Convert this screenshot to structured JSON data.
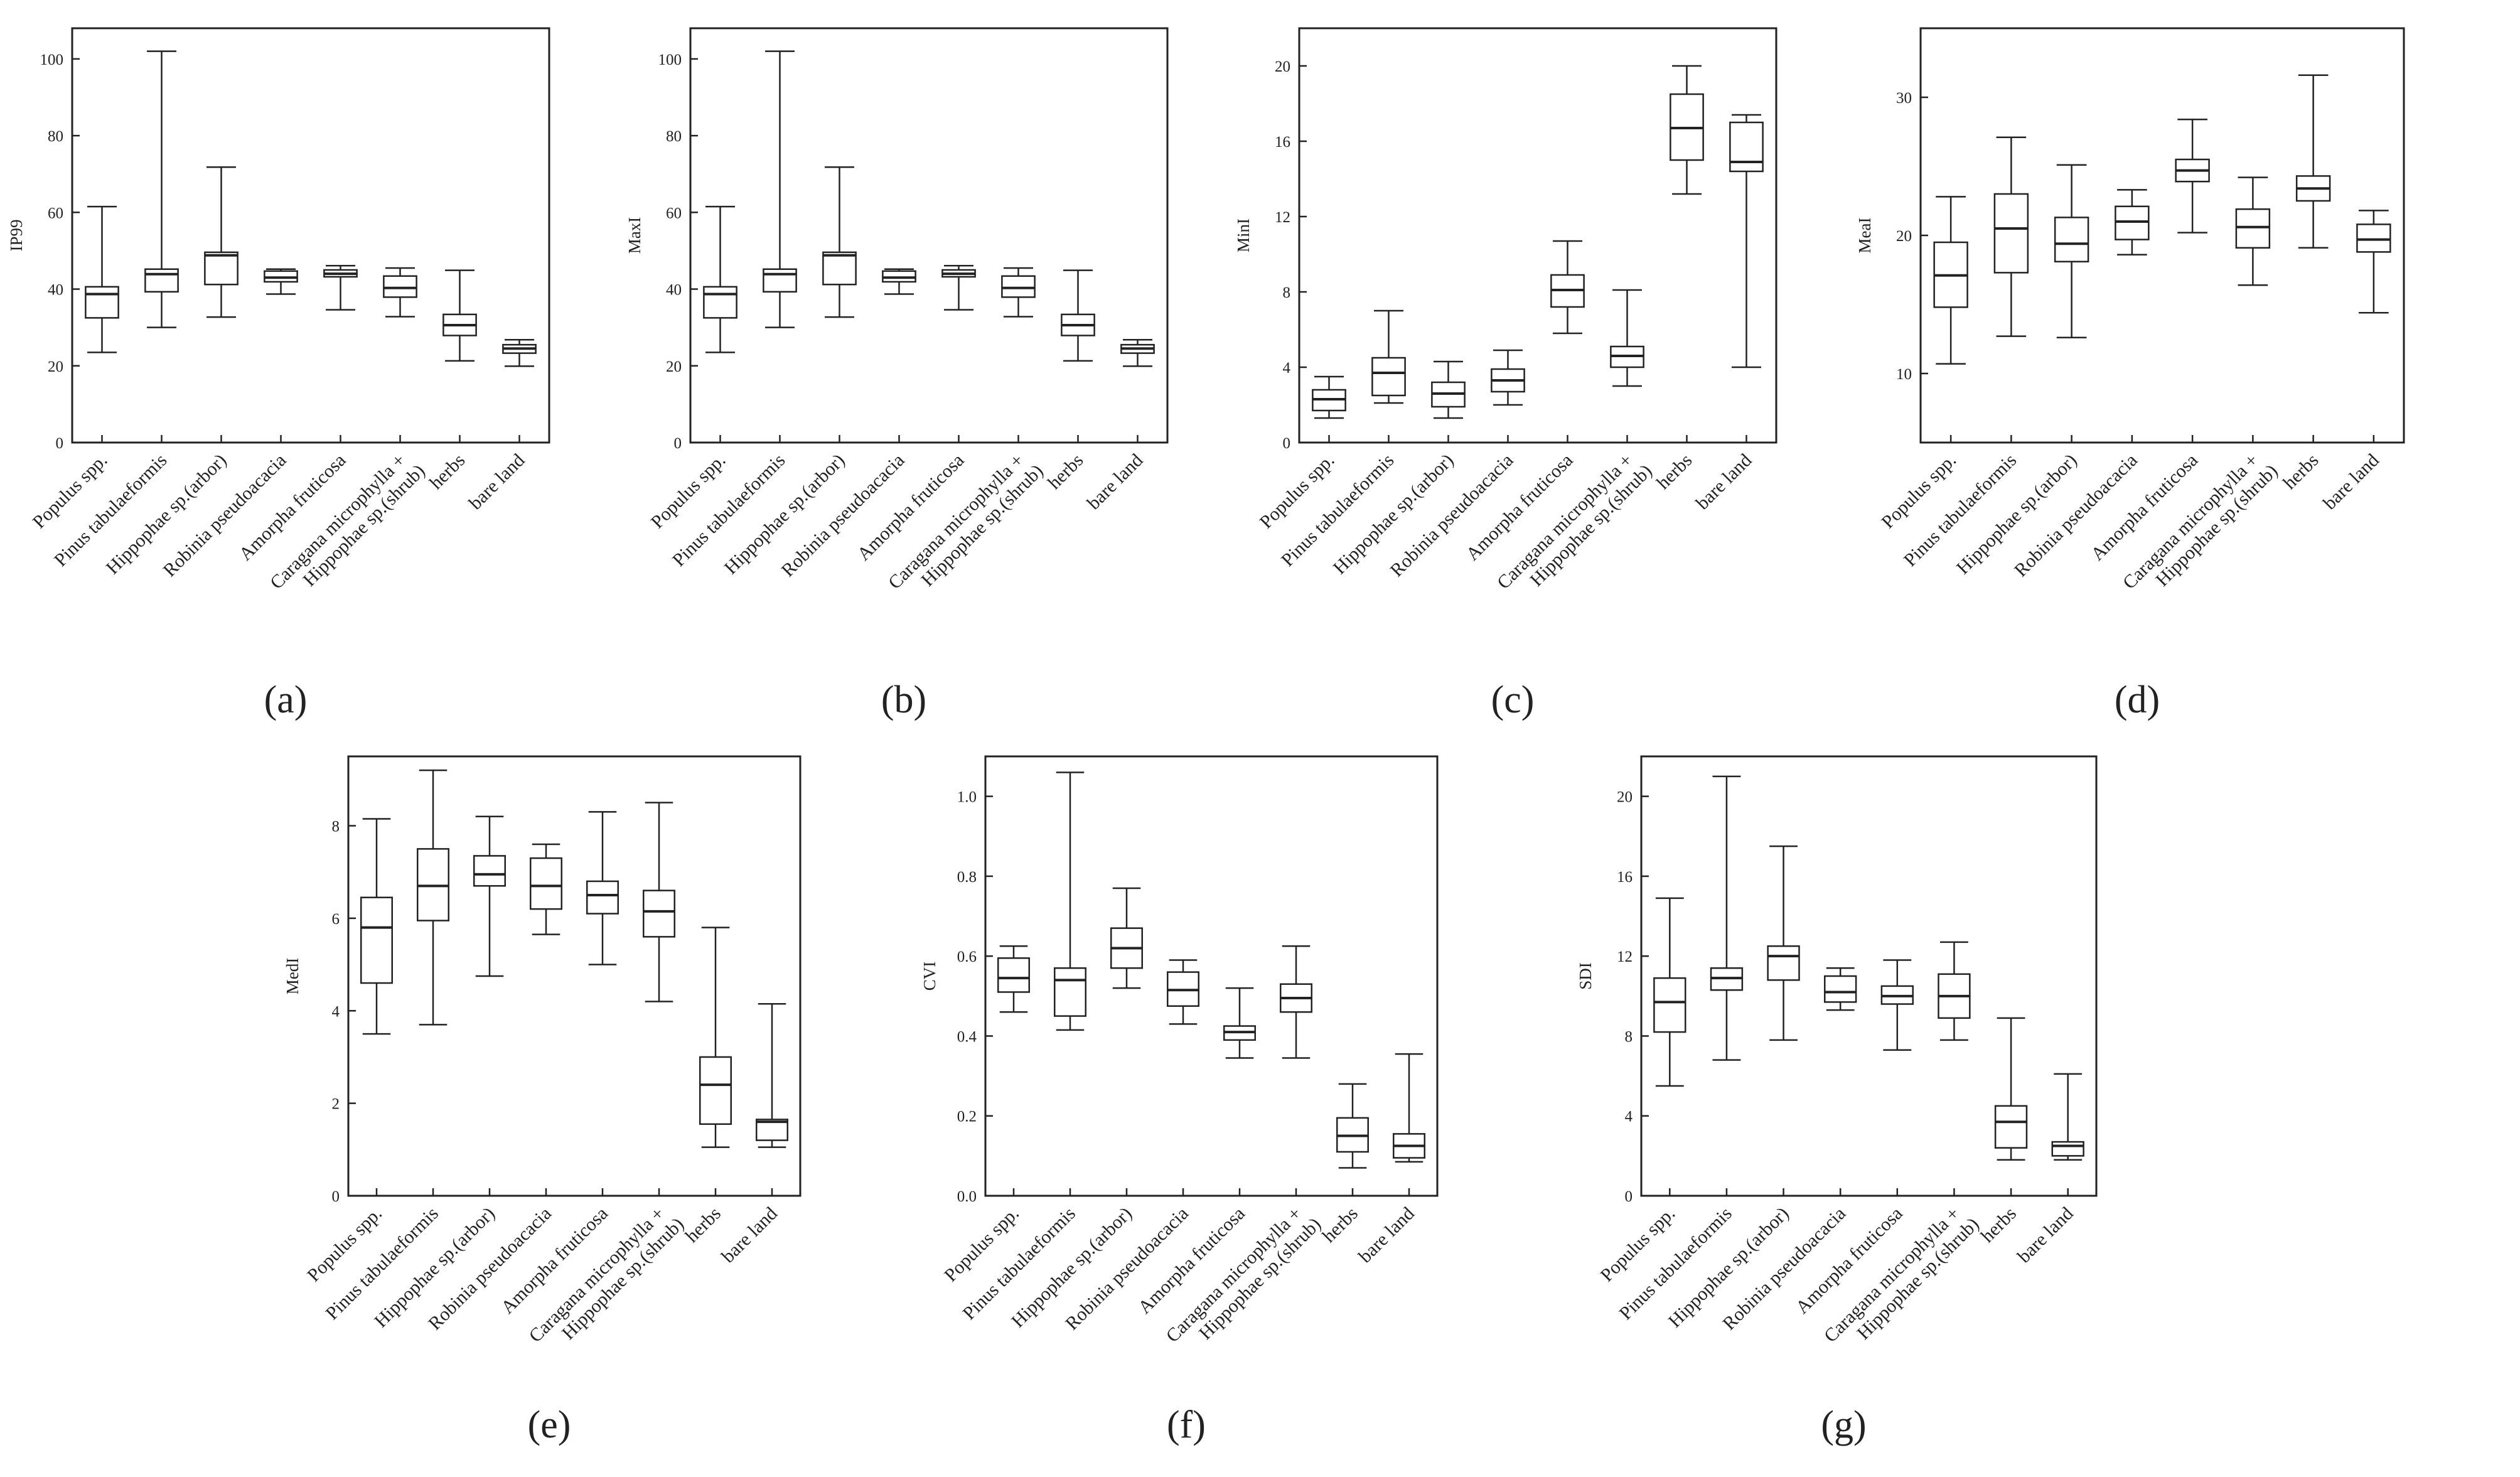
{
  "figure": {
    "category_lines": [
      [
        "Populus spp."
      ],
      [
        "Pinus tabulaeformis"
      ],
      [
        "Hippophae sp.(arbor)"
      ],
      [
        "Robinia pseudoacacia"
      ],
      [
        "Amorpha fruticosa"
      ],
      [
        "Caragana microphylla +",
        "Hippophae sp.(shrub)"
      ],
      [
        "herbs"
      ],
      [
        "bare land"
      ]
    ]
  },
  "chart_data": [
    {
      "type": "boxplot",
      "panel": "(a)",
      "ylabel": "IP99",
      "ylim": [
        0,
        108
      ],
      "yticks": [
        0,
        20,
        40,
        60,
        80,
        100
      ],
      "grid": false,
      "categories": [
        "Populus spp.",
        "Pinus tabulaeformis",
        "Hippophae sp.(arbor)",
        "Robinia pseudoacacia",
        "Amorpha fruticosa",
        "Caragana microphylla + Hippophae sp.(shrub)",
        "herbs",
        "bare land"
      ],
      "boxes": [
        {
          "min": 23.5,
          "q1": 32.5,
          "median": 38.7,
          "q3": 40.6,
          "max": 61.5
        },
        {
          "min": 30.0,
          "q1": 39.3,
          "median": 43.9,
          "q3": 45.2,
          "max": 102.0
        },
        {
          "min": 32.7,
          "q1": 41.2,
          "median": 48.8,
          "q3": 49.6,
          "max": 71.8
        },
        {
          "min": 38.7,
          "q1": 41.9,
          "median": 43.0,
          "q3": 44.7,
          "max": 45.2
        },
        {
          "min": 34.6,
          "q1": 43.2,
          "median": 44.0,
          "q3": 45.0,
          "max": 46.1
        },
        {
          "min": 32.8,
          "q1": 37.9,
          "median": 40.3,
          "q3": 43.4,
          "max": 45.5
        },
        {
          "min": 21.3,
          "q1": 27.9,
          "median": 30.6,
          "q3": 33.4,
          "max": 44.9
        },
        {
          "min": 19.9,
          "q1": 23.3,
          "median": 24.5,
          "q3": 25.5,
          "max": 26.8
        }
      ]
    },
    {
      "type": "boxplot",
      "panel": "(b)",
      "ylabel": "MaxI",
      "ylim": [
        0,
        108
      ],
      "yticks": [
        0,
        20,
        40,
        60,
        80,
        100
      ],
      "grid": false,
      "categories": [
        "Populus spp.",
        "Pinus tabulaeformis",
        "Hippophae sp.(arbor)",
        "Robinia pseudoacacia",
        "Amorpha fruticosa",
        "Caragana microphylla + Hippophae sp.(shrub)",
        "herbs",
        "bare land"
      ],
      "boxes": [
        {
          "min": 23.5,
          "q1": 32.5,
          "median": 38.7,
          "q3": 40.6,
          "max": 61.5
        },
        {
          "min": 30.0,
          "q1": 39.3,
          "median": 43.9,
          "q3": 45.2,
          "max": 102.0
        },
        {
          "min": 32.7,
          "q1": 41.2,
          "median": 48.8,
          "q3": 49.6,
          "max": 71.8
        },
        {
          "min": 38.7,
          "q1": 41.9,
          "median": 43.0,
          "q3": 44.7,
          "max": 45.2
        },
        {
          "min": 34.6,
          "q1": 43.2,
          "median": 44.0,
          "q3": 45.0,
          "max": 46.1
        },
        {
          "min": 32.8,
          "q1": 37.9,
          "median": 40.3,
          "q3": 43.4,
          "max": 45.5
        },
        {
          "min": 21.3,
          "q1": 27.9,
          "median": 30.6,
          "q3": 33.4,
          "max": 44.9
        },
        {
          "min": 19.9,
          "q1": 23.3,
          "median": 24.5,
          "q3": 25.5,
          "max": 26.8
        }
      ]
    },
    {
      "type": "boxplot",
      "panel": "(c)",
      "ylabel": "MinI",
      "ylim": [
        0,
        22
      ],
      "yticks": [
        0,
        4,
        8,
        12,
        16,
        20
      ],
      "grid": false,
      "categories": [
        "Populus spp.",
        "Pinus tabulaeformis",
        "Hippophae sp.(arbor)",
        "Robinia pseudoacacia",
        "Amorpha fruticosa",
        "Caragana microphylla + Hippophae sp.(shrub)",
        "herbs",
        "bare land"
      ],
      "boxes": [
        {
          "min": 1.3,
          "q1": 1.7,
          "median": 2.3,
          "q3": 2.8,
          "max": 3.5
        },
        {
          "min": 2.1,
          "q1": 2.5,
          "median": 3.7,
          "q3": 4.5,
          "max": 7.0
        },
        {
          "min": 1.3,
          "q1": 1.9,
          "median": 2.6,
          "q3": 3.2,
          "max": 4.3
        },
        {
          "min": 2.0,
          "q1": 2.7,
          "median": 3.3,
          "q3": 3.9,
          "max": 4.9
        },
        {
          "min": 5.8,
          "q1": 7.2,
          "median": 8.1,
          "q3": 8.9,
          "max": 10.7
        },
        {
          "min": 3.0,
          "q1": 4.0,
          "median": 4.6,
          "q3": 5.1,
          "max": 8.1
        },
        {
          "min": 13.2,
          "q1": 15.0,
          "median": 16.7,
          "q3": 18.5,
          "max": 20.0
        },
        {
          "min": 4.0,
          "q1": 14.4,
          "median": 14.9,
          "q3": 17.0,
          "max": 17.4
        }
      ]
    },
    {
      "type": "boxplot",
      "panel": "(d)",
      "ylabel": "MeaI",
      "ylim": [
        5,
        35
      ],
      "yticks": [
        10,
        20,
        30
      ],
      "grid": false,
      "categories": [
        "Populus spp.",
        "Pinus tabulaeformis",
        "Hippophae sp.(arbor)",
        "Robinia pseudoacacia",
        "Amorpha fruticosa",
        "Caragana microphylla + Hippophae sp.(shrub)",
        "herbs",
        "bare land"
      ],
      "boxes": [
        {
          "min": 10.7,
          "q1": 14.8,
          "median": 17.1,
          "q3": 19.5,
          "max": 22.8
        },
        {
          "min": 12.7,
          "q1": 17.3,
          "median": 20.5,
          "q3": 23.0,
          "max": 27.1
        },
        {
          "min": 12.6,
          "q1": 18.1,
          "median": 19.4,
          "q3": 21.3,
          "max": 25.1
        },
        {
          "min": 18.6,
          "q1": 19.7,
          "median": 21.0,
          "q3": 22.1,
          "max": 23.3
        },
        {
          "min": 20.2,
          "q1": 23.9,
          "median": 24.7,
          "q3": 25.5,
          "max": 28.4
        },
        {
          "min": 16.4,
          "q1": 19.1,
          "median": 20.6,
          "q3": 21.9,
          "max": 24.2
        },
        {
          "min": 19.1,
          "q1": 22.5,
          "median": 23.4,
          "q3": 24.3,
          "max": 31.6
        },
        {
          "min": 14.4,
          "q1": 18.8,
          "median": 19.7,
          "q3": 20.8,
          "max": 21.8
        }
      ]
    },
    {
      "type": "boxplot",
      "panel": "(e)",
      "ylabel": "MedI",
      "ylim": [
        0,
        9.5
      ],
      "yticks": [
        0,
        2,
        4,
        6,
        8
      ],
      "grid": false,
      "categories": [
        "Populus spp.",
        "Pinus tabulaeformis",
        "Hippophae sp.(arbor)",
        "Robinia pseudoacacia",
        "Amorpha fruticosa",
        "Caragana microphylla + Hippophae sp.(shrub)",
        "herbs",
        "bare land"
      ],
      "boxes": [
        {
          "min": 3.5,
          "q1": 4.6,
          "median": 5.8,
          "q3": 6.45,
          "max": 8.15
        },
        {
          "min": 3.7,
          "q1": 5.95,
          "median": 6.7,
          "q3": 7.5,
          "max": 9.2
        },
        {
          "min": 4.75,
          "q1": 6.7,
          "median": 6.95,
          "q3": 7.35,
          "max": 8.2
        },
        {
          "min": 5.65,
          "q1": 6.2,
          "median": 6.7,
          "q3": 7.3,
          "max": 7.6
        },
        {
          "min": 5.0,
          "q1": 6.1,
          "median": 6.5,
          "q3": 6.8,
          "max": 8.3
        },
        {
          "min": 4.2,
          "q1": 5.6,
          "median": 6.15,
          "q3": 6.6,
          "max": 8.5
        },
        {
          "min": 1.05,
          "q1": 1.55,
          "median": 2.4,
          "q3": 3.0,
          "max": 5.8
        },
        {
          "min": 1.05,
          "q1": 1.2,
          "median": 1.6,
          "q3": 1.65,
          "max": 4.15
        }
      ]
    },
    {
      "type": "boxplot",
      "panel": "(f)",
      "ylabel": "CVI",
      "ylim": [
        0,
        1.1
      ],
      "yticks": [
        0.0,
        0.2,
        0.4,
        0.6,
        0.8,
        1.0
      ],
      "ytick_labels": [
        "0.0",
        "0.2",
        "0.4",
        "0.6",
        "0.8",
        "1.0"
      ],
      "grid": false,
      "categories": [
        "Populus spp.",
        "Pinus tabulaeformis",
        "Hippophae sp.(arbor)",
        "Robinia pseudoacacia",
        "Amorpha fruticosa",
        "Caragana microphylla + Hippophae sp.(shrub)",
        "herbs",
        "bare land"
      ],
      "boxes": [
        {
          "min": 0.46,
          "q1": 0.51,
          "median": 0.545,
          "q3": 0.595,
          "max": 0.625
        },
        {
          "min": 0.415,
          "q1": 0.45,
          "median": 0.54,
          "q3": 0.57,
          "max": 1.06
        },
        {
          "min": 0.52,
          "q1": 0.57,
          "median": 0.62,
          "q3": 0.67,
          "max": 0.77
        },
        {
          "min": 0.43,
          "q1": 0.475,
          "median": 0.515,
          "q3": 0.56,
          "max": 0.59
        },
        {
          "min": 0.345,
          "q1": 0.39,
          "median": 0.41,
          "q3": 0.425,
          "max": 0.52
        },
        {
          "min": 0.345,
          "q1": 0.46,
          "median": 0.495,
          "q3": 0.53,
          "max": 0.625
        },
        {
          "min": 0.07,
          "q1": 0.11,
          "median": 0.15,
          "q3": 0.195,
          "max": 0.28
        },
        {
          "min": 0.085,
          "q1": 0.095,
          "median": 0.125,
          "q3": 0.155,
          "max": 0.355
        }
      ]
    },
    {
      "type": "boxplot",
      "panel": "(g)",
      "ylabel": "SDI",
      "ylim": [
        0,
        22
      ],
      "yticks": [
        0,
        4,
        8,
        12,
        16,
        20
      ],
      "grid": false,
      "categories": [
        "Populus spp.",
        "Pinus tabulaeformis",
        "Hippophae sp.(arbor)",
        "Robinia pseudoacacia",
        "Amorpha fruticosa",
        "Caragana microphylla + Hippophae sp.(shrub)",
        "herbs",
        "bare land"
      ],
      "boxes": [
        {
          "min": 5.5,
          "q1": 8.2,
          "median": 9.7,
          "q3": 10.9,
          "max": 14.9
        },
        {
          "min": 6.8,
          "q1": 10.3,
          "median": 10.9,
          "q3": 11.4,
          "max": 21.0
        },
        {
          "min": 7.8,
          "q1": 10.8,
          "median": 12.0,
          "q3": 12.5,
          "max": 17.5
        },
        {
          "min": 9.3,
          "q1": 9.7,
          "median": 10.2,
          "q3": 11.0,
          "max": 11.4
        },
        {
          "min": 7.3,
          "q1": 9.6,
          "median": 10.0,
          "q3": 10.5,
          "max": 11.8
        },
        {
          "min": 7.8,
          "q1": 8.9,
          "median": 10.0,
          "q3": 11.1,
          "max": 12.7
        },
        {
          "min": 1.8,
          "q1": 2.4,
          "median": 3.7,
          "q3": 4.5,
          "max": 8.9
        },
        {
          "min": 1.8,
          "q1": 2.0,
          "median": 2.5,
          "q3": 2.7,
          "max": 6.1
        }
      ]
    }
  ]
}
